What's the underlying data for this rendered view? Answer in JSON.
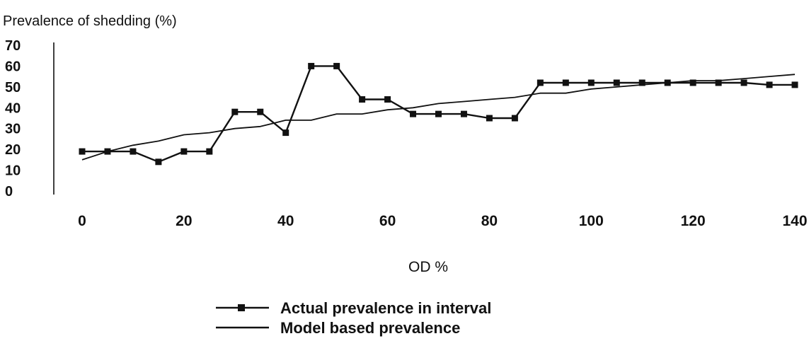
{
  "chart_data": {
    "type": "line",
    "title": "",
    "ylabel": "Prevalence of shedding (%)",
    "xlabel": "OD %",
    "xlim": [
      0,
      140
    ],
    "ylim": [
      0,
      70
    ],
    "x_ticks": [
      0,
      20,
      40,
      60,
      80,
      100,
      120,
      140
    ],
    "y_ticks": [
      0,
      10,
      20,
      30,
      40,
      50,
      60,
      70
    ],
    "grid": false,
    "legend_position": "bottom-center",
    "series": [
      {
        "name": "Actual prevalence in interval",
        "marker": "square",
        "color": "#111111",
        "x": [
          0,
          5,
          10,
          15,
          20,
          25,
          30,
          35,
          40,
          45,
          50,
          55,
          60,
          65,
          70,
          75,
          80,
          85,
          90,
          95,
          100,
          105,
          110,
          115,
          120,
          125,
          130,
          135,
          140
        ],
        "y": [
          19,
          19,
          19,
          14,
          19,
          19,
          38,
          38,
          28,
          60,
          60,
          44,
          44,
          37,
          37,
          37,
          35,
          35,
          52,
          52,
          52,
          52,
          52,
          52,
          52,
          52,
          52,
          51,
          51
        ]
      },
      {
        "name": "Model based prevalence",
        "marker": "none",
        "color": "#111111",
        "x": [
          0,
          5,
          10,
          15,
          20,
          25,
          30,
          35,
          40,
          45,
          50,
          55,
          60,
          65,
          70,
          75,
          80,
          85,
          90,
          95,
          100,
          105,
          110,
          115,
          120,
          125,
          130,
          135,
          140
        ],
        "y": [
          15,
          19,
          22,
          24,
          27,
          28,
          30,
          31,
          34,
          34,
          37,
          37,
          39,
          40,
          42,
          43,
          44,
          45,
          47,
          47,
          49,
          50,
          51,
          52,
          53,
          53,
          54,
          55,
          56
        ]
      }
    ]
  }
}
